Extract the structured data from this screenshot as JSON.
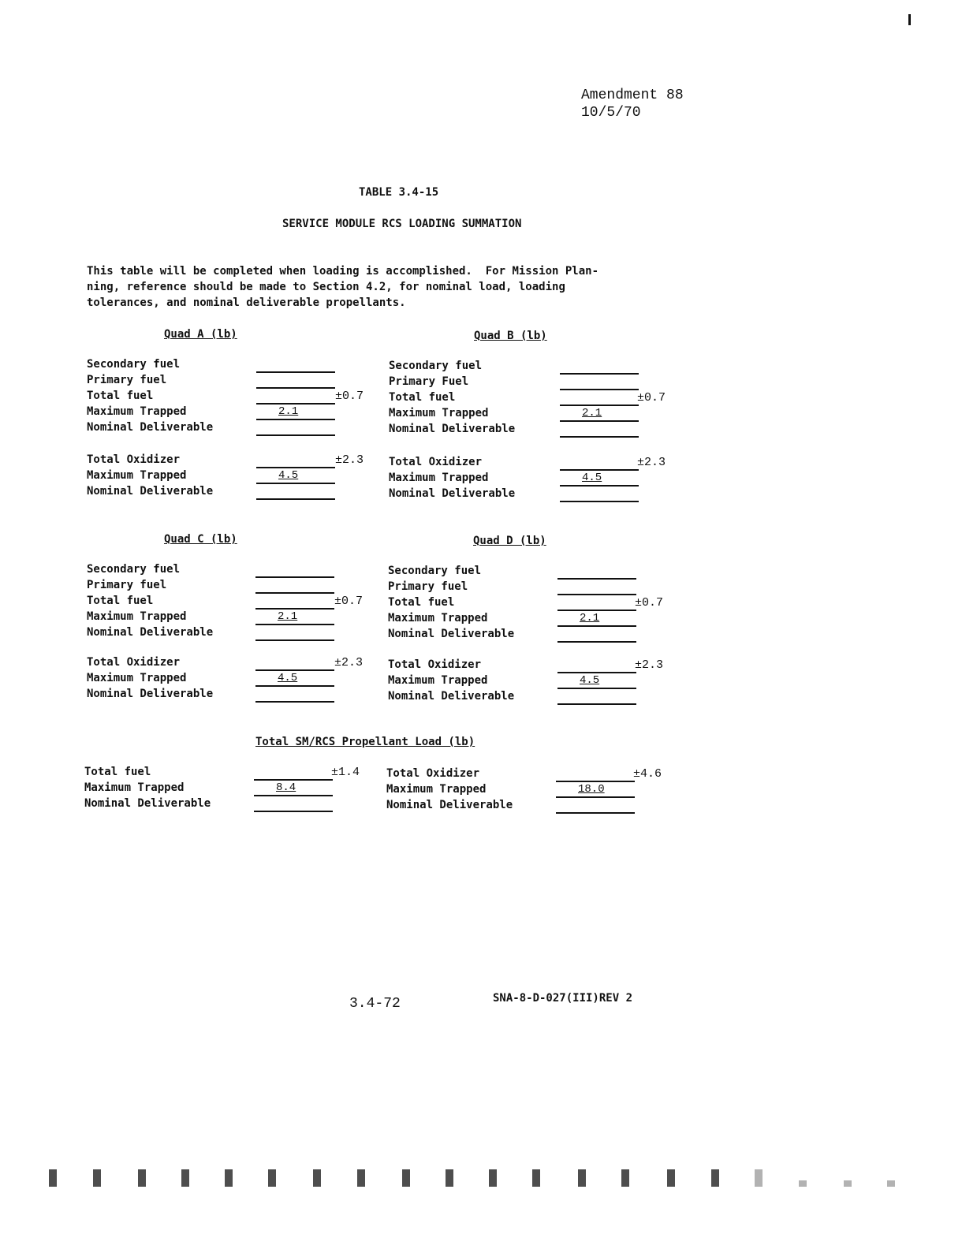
{
  "header": {
    "amendment": "Amendment 88",
    "date": "10/5/70"
  },
  "title": "TABLE 3.4-15",
  "subtitle": "SERVICE MODULE RCS LOADING SUMMATION",
  "intro": "This table will be completed when loading is accomplished.  For Mission Plan-\nning, reference should be made to Section 4.2, for nominal load, loading\ntolerances, and nominal deliverable propellants.",
  "quads": [
    {
      "title": "Quad A (lb)",
      "fuel": [
        {
          "label": "Secondary fuel",
          "value": "",
          "tol": ""
        },
        {
          "label": "Primary fuel",
          "value": "",
          "tol": ""
        },
        {
          "label": "Total fuel",
          "value": "",
          "tol": "±0.7"
        },
        {
          "label": "Maximum Trapped",
          "value": "2.1",
          "tol": ""
        },
        {
          "label": "Nominal Deliverable",
          "value": "",
          "tol": ""
        }
      ],
      "oxidizer": [
        {
          "label": "Total Oxidizer",
          "value": "",
          "tol": "±2.3"
        },
        {
          "label": "Maximum Trapped",
          "value": "4.5",
          "tol": ""
        },
        {
          "label": "Nominal Deliverable",
          "value": "",
          "tol": ""
        }
      ]
    },
    {
      "title": "Quad B (lb)",
      "fuel": [
        {
          "label": "Secondary fuel",
          "value": "",
          "tol": ""
        },
        {
          "label": "Primary Fuel",
          "value": "",
          "tol": ""
        },
        {
          "label": "Total fuel",
          "value": "",
          "tol": "±0.7"
        },
        {
          "label": "Maximum Trapped",
          "value": "2.1",
          "tol": ""
        },
        {
          "label": "Nominal Deliverable",
          "value": "",
          "tol": ""
        }
      ],
      "oxidizer": [
        {
          "label": "Total Oxidizer",
          "value": "",
          "tol": "±2.3"
        },
        {
          "label": "Maximum Trapped",
          "value": "4.5",
          "tol": ""
        },
        {
          "label": "Nominal Deliverable",
          "value": "",
          "tol": ""
        }
      ]
    },
    {
      "title": "Quad C (lb)",
      "fuel": [
        {
          "label": "Secondary fuel",
          "value": "",
          "tol": ""
        },
        {
          "label": "Primary fuel",
          "value": "",
          "tol": ""
        },
        {
          "label": "Total fuel",
          "value": "",
          "tol": "±0.7"
        },
        {
          "label": "Maximum Trapped",
          "value": "2.1",
          "tol": ""
        },
        {
          "label": "Nominal Deliverable",
          "value": "",
          "tol": ""
        }
      ],
      "oxidizer": [
        {
          "label": "Total Oxidizer",
          "value": "",
          "tol": "±2.3"
        },
        {
          "label": "Maximum Trapped",
          "value": "4.5",
          "tol": ""
        },
        {
          "label": "Nominal Deliverable",
          "value": "",
          "tol": ""
        }
      ]
    },
    {
      "title": "Quad D (lb)",
      "fuel": [
        {
          "label": "Secondary fuel",
          "value": "",
          "tol": ""
        },
        {
          "label": "Primary fuel",
          "value": "",
          "tol": ""
        },
        {
          "label": "Total fuel",
          "value": "",
          "tol": "±0.7"
        },
        {
          "label": "Maximum Trapped",
          "value": "2.1",
          "tol": ""
        },
        {
          "label": "Nominal Deliverable",
          "value": "",
          "tol": ""
        }
      ],
      "oxidizer": [
        {
          "label": "Total Oxidizer",
          "value": "",
          "tol": "±2.3"
        },
        {
          "label": "Maximum Trapped",
          "value": "4.5",
          "tol": ""
        },
        {
          "label": "Nominal Deliverable",
          "value": "",
          "tol": ""
        }
      ]
    }
  ],
  "total": {
    "title": "Total SM/RCS Propellant Load (lb)",
    "fuel": [
      {
        "label": "Total fuel",
        "value": "",
        "tol": "±1.4"
      },
      {
        "label": "Maximum Trapped",
        "value": "8.4",
        "tol": ""
      },
      {
        "label": "Nominal Deliverable",
        "value": "",
        "tol": ""
      }
    ],
    "oxidizer": [
      {
        "label": "Total Oxidizer",
        "value": "",
        "tol": "±4.6"
      },
      {
        "label": "Maximum Trapped",
        "value": "18.0",
        "tol": ""
      },
      {
        "label": "Nominal Deliverable",
        "value": "",
        "tol": ""
      }
    ]
  },
  "footer": {
    "page_number": "3.4-72",
    "doc_id": "SNA-8-D-027(III)REV 2"
  }
}
